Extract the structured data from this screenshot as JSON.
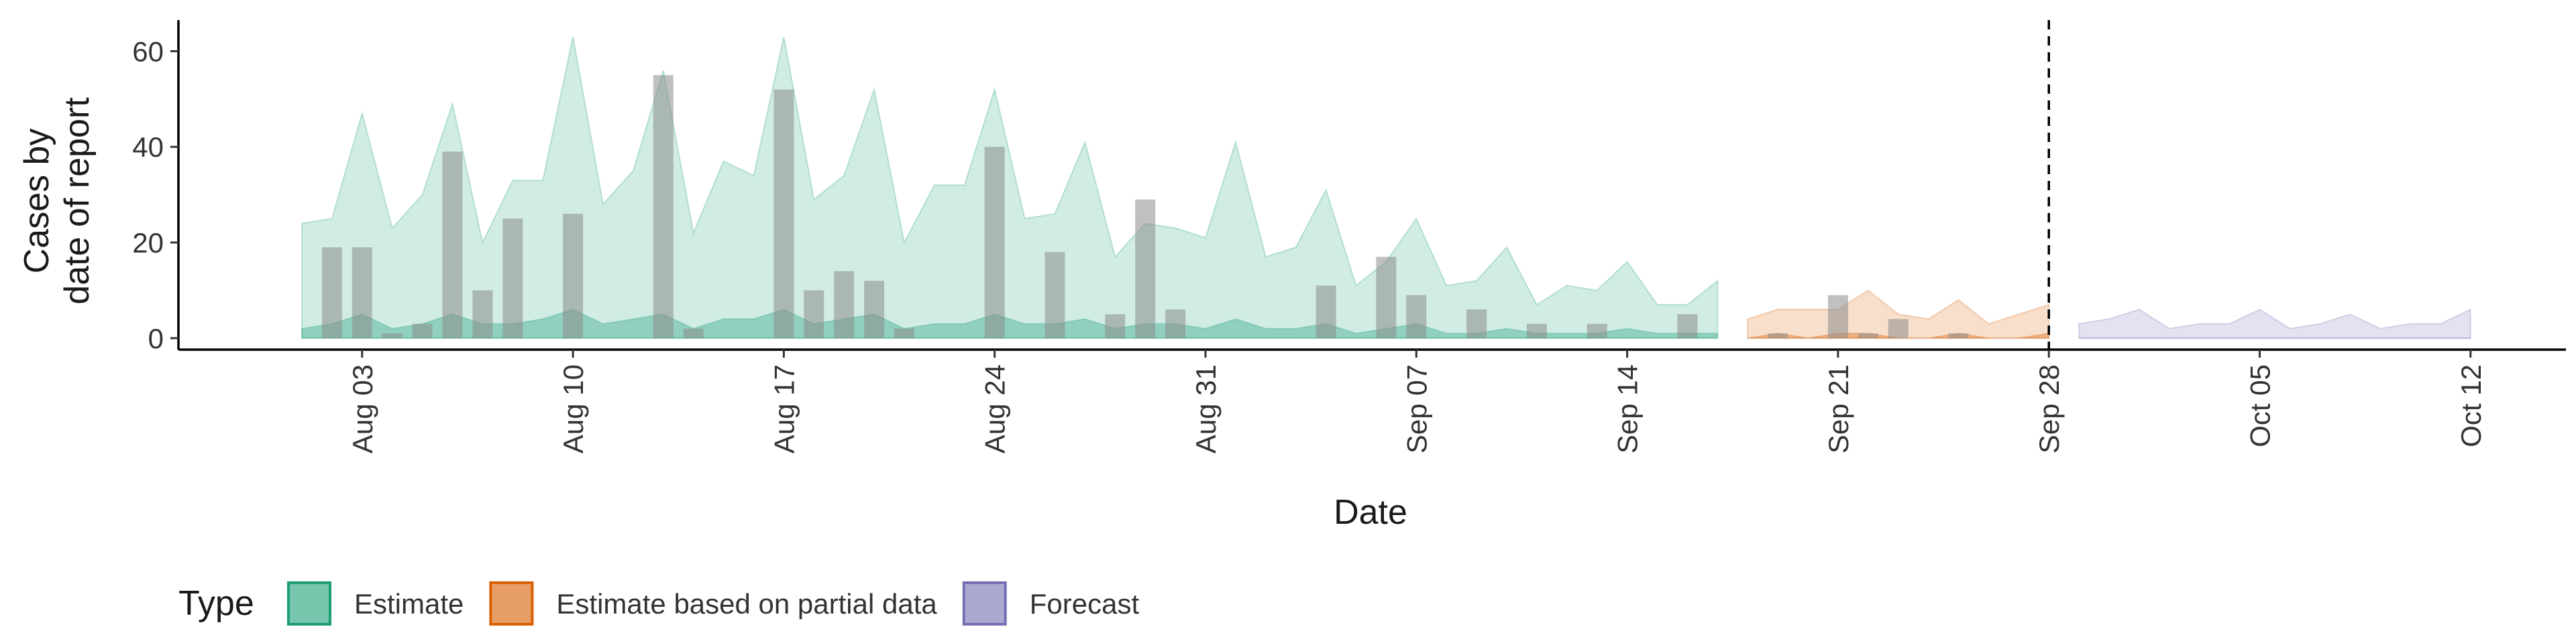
{
  "chart_data": {
    "type": "ribbon",
    "xlabel": "Date",
    "ylabel": [
      "Cases by",
      "date of report"
    ],
    "legend_title": "Type",
    "x": [
      "Aug 01",
      "Aug 02",
      "Aug 03",
      "Aug 04",
      "Aug 05",
      "Aug 06",
      "Aug 07",
      "Aug 08",
      "Aug 09",
      "Aug 10",
      "Aug 11",
      "Aug 12",
      "Aug 13",
      "Aug 14",
      "Aug 15",
      "Aug 16",
      "Aug 17",
      "Aug 18",
      "Aug 19",
      "Aug 20",
      "Aug 21",
      "Aug 22",
      "Aug 23",
      "Aug 24",
      "Aug 25",
      "Aug 26",
      "Aug 27",
      "Aug 28",
      "Aug 29",
      "Aug 30",
      "Aug 31",
      "Sep 01",
      "Sep 02",
      "Sep 03",
      "Sep 04",
      "Sep 05",
      "Sep 06",
      "Sep 07",
      "Sep 08",
      "Sep 09",
      "Sep 10",
      "Sep 11",
      "Sep 12",
      "Sep 13",
      "Sep 14",
      "Sep 15",
      "Sep 16",
      "Sep 17",
      "Sep 18",
      "Sep 19",
      "Sep 20",
      "Sep 21",
      "Sep 22",
      "Sep 23",
      "Sep 24",
      "Sep 25",
      "Sep 26",
      "Sep 27",
      "Sep 28",
      "Sep 29",
      "Sep 30",
      "Oct 01",
      "Oct 02",
      "Oct 03",
      "Oct 04",
      "Oct 05",
      "Oct 06",
      "Oct 07",
      "Oct 08",
      "Oct 09",
      "Oct 10",
      "Oct 11",
      "Oct 12"
    ],
    "xticks": [
      "Aug 03",
      "Aug 10",
      "Aug 17",
      "Aug 24",
      "Aug 31",
      "Sep 07",
      "Sep 14",
      "Sep 21",
      "Sep 28",
      "Oct 05",
      "Oct 12"
    ],
    "ylim": [
      -2.4,
      66.5
    ],
    "yticks": [
      0,
      20,
      40,
      60
    ],
    "vline": "Sep 28",
    "bars": {
      "color": "#8c8c8c",
      "values": [
        0,
        19,
        19,
        1,
        3,
        39,
        10,
        25,
        0,
        26,
        0,
        0,
        55,
        2,
        0,
        0,
        52,
        10,
        14,
        12,
        2,
        0,
        0,
        40,
        0,
        18,
        0,
        5,
        29,
        6,
        0,
        0,
        0,
        0,
        11,
        0,
        17,
        9,
        0,
        6,
        0,
        3,
        0,
        3,
        0,
        0,
        5,
        0,
        0,
        1,
        0,
        9,
        1,
        4,
        0,
        1,
        null,
        null,
        null,
        null,
        null,
        null,
        null,
        null,
        null,
        null,
        null,
        null,
        null,
        null,
        null,
        null,
        null
      ]
    },
    "series": [
      {
        "name": "Estimate",
        "color": "#1b9e77",
        "upper": [
          24,
          25,
          47,
          23,
          30,
          49,
          20,
          33,
          33,
          63,
          28,
          35,
          56,
          22,
          37,
          34,
          63,
          29,
          34,
          52,
          20,
          32,
          32,
          52,
          25,
          26,
          41,
          17,
          24,
          23,
          21,
          41,
          17,
          19,
          31,
          11,
          16,
          25,
          11,
          12,
          19,
          7,
          11,
          10,
          16,
          7,
          7,
          12,
          null,
          null,
          null,
          null,
          null,
          null,
          null,
          null,
          null,
          null,
          null,
          null,
          null,
          null,
          null,
          null,
          null,
          null,
          null,
          null,
          null,
          null,
          null,
          null,
          null
        ],
        "inner": [
          2,
          3,
          5,
          2,
          3,
          5,
          3,
          3,
          4,
          6,
          3,
          4,
          5,
          2,
          4,
          4,
          6,
          3,
          4,
          5,
          2,
          3,
          3,
          5,
          3,
          3,
          4,
          2,
          3,
          3,
          2,
          4,
          2,
          2,
          3,
          1,
          2,
          3,
          1,
          1,
          2,
          1,
          1,
          1,
          2,
          1,
          1,
          1,
          null,
          null,
          null,
          null,
          null,
          null,
          null,
          null,
          null,
          null,
          null,
          null,
          null,
          null,
          null,
          null,
          null,
          null,
          null,
          null,
          null,
          null,
          null,
          null,
          null
        ],
        "lower": [
          0,
          0,
          0,
          0,
          0,
          0,
          0,
          0,
          0,
          0,
          0,
          0,
          0,
          0,
          0,
          0,
          0,
          0,
          0,
          0,
          0,
          0,
          0,
          0,
          0,
          0,
          0,
          0,
          0,
          0,
          0,
          0,
          0,
          0,
          0,
          0,
          0,
          0,
          0,
          0,
          0,
          0,
          0,
          0,
          0,
          0,
          0,
          0,
          null,
          null,
          null,
          null,
          null,
          null,
          null,
          null,
          null,
          null,
          null,
          null,
          null,
          null,
          null,
          null,
          null,
          null,
          null,
          null,
          null,
          null,
          null,
          null,
          null
        ]
      },
      {
        "name": "Estimate based on partial data",
        "color": "#d95f02",
        "upper": [
          null,
          null,
          null,
          null,
          null,
          null,
          null,
          null,
          null,
          null,
          null,
          null,
          null,
          null,
          null,
          null,
          null,
          null,
          null,
          null,
          null,
          null,
          null,
          null,
          null,
          null,
          null,
          null,
          null,
          null,
          null,
          null,
          null,
          null,
          null,
          null,
          null,
          null,
          null,
          null,
          null,
          null,
          null,
          null,
          null,
          null,
          null,
          null,
          4,
          6,
          6,
          6,
          10,
          5,
          4,
          8,
          3,
          5,
          7,
          null,
          null,
          null,
          null,
          null,
          null,
          null,
          null,
          null,
          null,
          null,
          null,
          null,
          null
        ],
        "inner": [
          null,
          null,
          null,
          null,
          null,
          null,
          null,
          null,
          null,
          null,
          null,
          null,
          null,
          null,
          null,
          null,
          null,
          null,
          null,
          null,
          null,
          null,
          null,
          null,
          null,
          null,
          null,
          null,
          null,
          null,
          null,
          null,
          null,
          null,
          null,
          null,
          null,
          null,
          null,
          null,
          null,
          null,
          null,
          null,
          null,
          null,
          null,
          null,
          0,
          1,
          0,
          1,
          1,
          0,
          0,
          1,
          0,
          0,
          1,
          null,
          null,
          null,
          null,
          null,
          null,
          null,
          null,
          null,
          null,
          null,
          null,
          null,
          null
        ],
        "lower": [
          null,
          null,
          null,
          null,
          null,
          null,
          null,
          null,
          null,
          null,
          null,
          null,
          null,
          null,
          null,
          null,
          null,
          null,
          null,
          null,
          null,
          null,
          null,
          null,
          null,
          null,
          null,
          null,
          null,
          null,
          null,
          null,
          null,
          null,
          null,
          null,
          null,
          null,
          null,
          null,
          null,
          null,
          null,
          null,
          null,
          null,
          null,
          null,
          0,
          0,
          0,
          0,
          0,
          0,
          0,
          0,
          0,
          0,
          0,
          null,
          null,
          null,
          null,
          null,
          null,
          null,
          null,
          null,
          null,
          null,
          null,
          null,
          null
        ]
      },
      {
        "name": "Forecast",
        "color": "#7570b3",
        "upper": [
          null,
          null,
          null,
          null,
          null,
          null,
          null,
          null,
          null,
          null,
          null,
          null,
          null,
          null,
          null,
          null,
          null,
          null,
          null,
          null,
          null,
          null,
          null,
          null,
          null,
          null,
          null,
          null,
          null,
          null,
          null,
          null,
          null,
          null,
          null,
          null,
          null,
          null,
          null,
          null,
          null,
          null,
          null,
          null,
          null,
          null,
          null,
          null,
          null,
          null,
          null,
          null,
          null,
          null,
          null,
          null,
          null,
          null,
          null,
          3,
          4,
          6,
          2,
          3,
          3,
          6,
          2,
          3,
          5,
          2,
          3,
          3,
          6
        ],
        "inner": [
          null,
          null,
          null,
          null,
          null,
          null,
          null,
          null,
          null,
          null,
          null,
          null,
          null,
          null,
          null,
          null,
          null,
          null,
          null,
          null,
          null,
          null,
          null,
          null,
          null,
          null,
          null,
          null,
          null,
          null,
          null,
          null,
          null,
          null,
          null,
          null,
          null,
          null,
          null,
          null,
          null,
          null,
          null,
          null,
          null,
          null,
          null,
          null,
          null,
          null,
          null,
          null,
          null,
          null,
          null,
          null,
          null,
          null,
          null,
          0,
          0,
          0,
          0,
          0,
          0,
          0,
          0,
          0,
          0,
          0,
          0,
          0,
          0
        ],
        "lower": [
          null,
          null,
          null,
          null,
          null,
          null,
          null,
          null,
          null,
          null,
          null,
          null,
          null,
          null,
          null,
          null,
          null,
          null,
          null,
          null,
          null,
          null,
          null,
          null,
          null,
          null,
          null,
          null,
          null,
          null,
          null,
          null,
          null,
          null,
          null,
          null,
          null,
          null,
          null,
          null,
          null,
          null,
          null,
          null,
          null,
          null,
          null,
          null,
          null,
          null,
          null,
          null,
          null,
          null,
          null,
          null,
          null,
          null,
          null,
          0,
          0,
          0,
          0,
          0,
          0,
          0,
          0,
          0,
          0,
          0,
          0,
          0,
          0
        ]
      }
    ]
  }
}
